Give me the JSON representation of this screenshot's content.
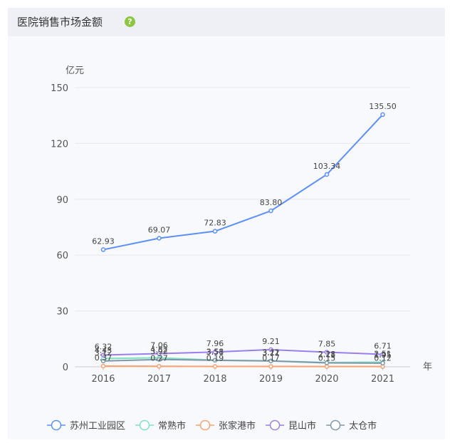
{
  "header": {
    "title": "医院销售市场金额",
    "help_icon": "help-circle-icon",
    "help_symbol": "?",
    "help_color": "#8dc63f"
  },
  "chart_data": {
    "type": "line",
    "ylabel": "亿元",
    "xlabel": "年",
    "categories": [
      "2016",
      "2017",
      "2018",
      "2019",
      "2020",
      "2021"
    ],
    "ylim": [
      0,
      150
    ],
    "yticks": [
      0,
      30,
      60,
      90,
      120,
      150
    ],
    "grid": true,
    "legend_position": "bottom",
    "series": [
      {
        "name": "苏州工业园区",
        "color": "#5b8ff9",
        "values": [
          62.93,
          69.07,
          72.83,
          83.8,
          103.34,
          135.5
        ],
        "labels": [
          "62.93",
          "69.07",
          "72.83",
          "83.80",
          "103.34",
          "135.50"
        ]
      },
      {
        "name": "常熟市",
        "color": "#7fe0c4",
        "values": [
          4.43,
          4.82,
          3.58,
          3.22,
          2.28,
          2.51
        ],
        "labels": [
          "4.43",
          "4.82",
          "3.58",
          "3.22",
          "2.28",
          "2.51"
        ]
      },
      {
        "name": "张家港市",
        "color": "#f7a26f",
        "values": [
          0.37,
          0.27,
          0.19,
          0.17,
          0.15,
          0.12
        ],
        "labels": [
          "0.37",
          "0.27",
          "0.19",
          "0.17",
          "0.15",
          "0.12"
        ]
      },
      {
        "name": "昆山市",
        "color": "#9a7ef0",
        "values": [
          6.32,
          7.06,
          7.96,
          9.21,
          7.85,
          6.71
        ],
        "labels": [
          "6.32",
          "7.06",
          "7.96",
          "9.21",
          "7.85",
          "6.71"
        ]
      },
      {
        "name": "太仓市",
        "color": "#7e98a8",
        "values": [
          3.12,
          3.92,
          3.51,
          3.11,
          2.11,
          1.95
        ],
        "labels": [
          "3.12",
          "3.92",
          "3.51",
          "3.11",
          "2.11",
          "1.95"
        ]
      }
    ]
  }
}
